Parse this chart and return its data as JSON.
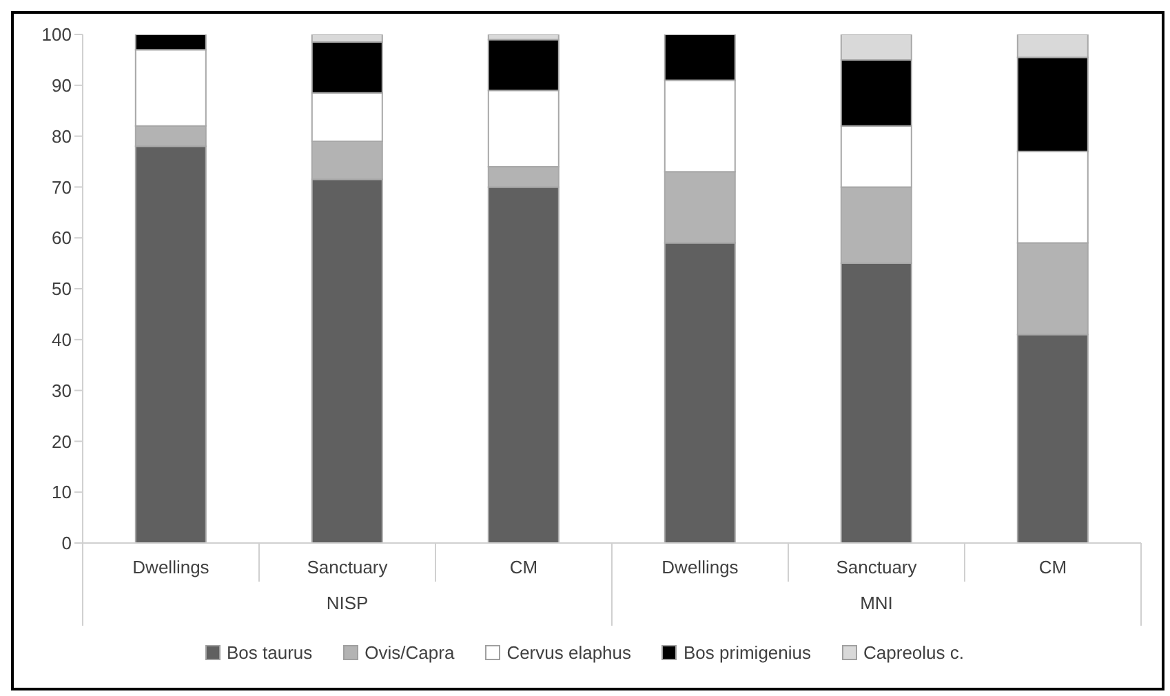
{
  "chart_data": {
    "type": "bar",
    "stacked": true,
    "categories": [
      "Dwellings",
      "Sanctuary",
      "CM",
      "Dwellings",
      "Sanctuary",
      "CM"
    ],
    "annotations": [
      "NISP",
      "MNI"
    ],
    "series": [
      {
        "name": "Bos taurus",
        "color": "#606060",
        "values": [
          78,
          71.5,
          70,
          59,
          55,
          41
        ]
      },
      {
        "name": "Ovis/Capra",
        "color": "#b3b3b3",
        "values": [
          4,
          7.5,
          4,
          14,
          15,
          18
        ]
      },
      {
        "name": "Cervus elaphus",
        "color": "#ffffff",
        "values": [
          15,
          9.5,
          15,
          18,
          12,
          18
        ]
      },
      {
        "name": "Bos primigenius",
        "color": "#000000",
        "values": [
          3,
          10,
          10,
          9,
          13,
          18.5
        ]
      },
      {
        "name": "Capreolus c.",
        "color": "#d9d9d9",
        "values": [
          0,
          1.5,
          1,
          0,
          5,
          4.5
        ]
      }
    ],
    "ylim": [
      0,
      100
    ],
    "yticks": [
      0,
      10,
      20,
      30,
      40,
      50,
      60,
      70,
      80,
      90,
      100
    ],
    "grid": false,
    "legend": "bottom"
  }
}
